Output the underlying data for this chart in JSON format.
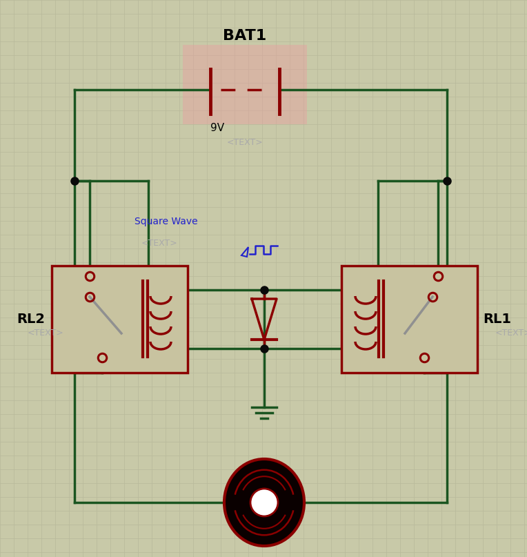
{
  "bg_color": "#c8c9a8",
  "grid_color": "#b8b99a",
  "wire_color": "#1a5520",
  "component_color": "#8b0000",
  "relay_fill": "#c8c3a0",
  "relay_border": "#8b0000",
  "junction_color": "#0a0a0a",
  "bat_highlight": "#e8a0a0",
  "motor_dark": "#0a0000",
  "switch_color": "#909090",
  "title": "BAT1",
  "voltage": "9V",
  "text_placeholder": "<TEXT>",
  "sq_wave_label": "Square Wave",
  "rl1_label": "RL1",
  "rl2_label": "RL2",
  "text_color_gray": "#aaaaaa",
  "blue_color": "#2222cc"
}
